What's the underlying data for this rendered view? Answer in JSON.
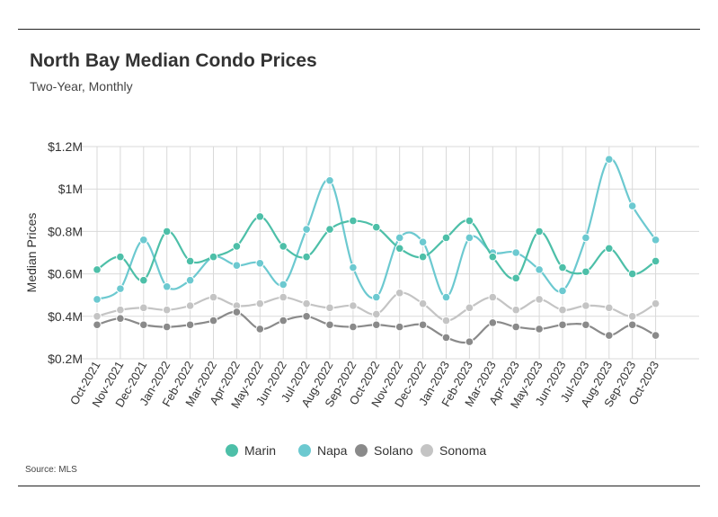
{
  "title": "North Bay Median Condo Prices",
  "subtitle": "Two-Year, Monthly",
  "source": "Source: MLS",
  "chart_data": {
    "type": "line",
    "title": "North Bay Median Condo Prices",
    "subtitle": "Two-Year, Monthly",
    "xlabel": "",
    "ylabel": "Median Prices",
    "ylim": [
      0.2,
      1.2
    ],
    "yticks": [
      {
        "value": 0.2,
        "label": "$0.2M"
      },
      {
        "value": 0.4,
        "label": "$0.4M"
      },
      {
        "value": 0.6,
        "label": "$0.6M"
      },
      {
        "value": 0.8,
        "label": "$0.8M"
      },
      {
        "value": 1.0,
        "label": "$1M"
      },
      {
        "value": 1.2,
        "label": "$1.2M"
      }
    ],
    "grid": true,
    "legend_position": "bottom-center",
    "categories": [
      "Oct-2021",
      "Nov-2021",
      "Dec-2021",
      "Jan-2022",
      "Feb-2022",
      "Mar-2022",
      "Apr-2022",
      "May-2022",
      "Jun-2022",
      "Jul-2022",
      "Aug-2022",
      "Sep-2022",
      "Oct-2022",
      "Nov-2022",
      "Dec-2022",
      "Jan-2023",
      "Feb-2023",
      "Mar-2023",
      "Apr-2023",
      "May-2023",
      "Jun-2023",
      "Jul-2023",
      "Aug-2023",
      "Sep-2023",
      "Oct-2023"
    ],
    "series": [
      {
        "name": "Marin",
        "color": "#4dbfa8",
        "values": [
          0.62,
          0.68,
          0.57,
          0.8,
          0.66,
          0.68,
          0.73,
          0.87,
          0.73,
          0.68,
          0.81,
          0.85,
          0.82,
          0.72,
          0.68,
          0.77,
          0.85,
          0.68,
          0.58,
          0.8,
          0.63,
          0.61,
          0.72,
          0.6,
          0.66
        ]
      },
      {
        "name": "Napa",
        "color": "#6cc9d0",
        "values": [
          0.48,
          0.53,
          0.76,
          0.54,
          0.57,
          0.68,
          0.64,
          0.65,
          0.55,
          0.81,
          1.04,
          0.63,
          0.49,
          0.77,
          0.75,
          0.49,
          0.77,
          0.7,
          0.7,
          0.62,
          0.52,
          0.77,
          1.14,
          0.92,
          0.76
        ]
      },
      {
        "name": "Solano",
        "color": "#8a8a8a",
        "values": [
          0.36,
          0.39,
          0.36,
          0.35,
          0.36,
          0.38,
          0.42,
          0.34,
          0.38,
          0.4,
          0.36,
          0.35,
          0.36,
          0.35,
          0.36,
          0.3,
          0.28,
          0.37,
          0.35,
          0.34,
          0.36,
          0.36,
          0.31,
          0.36,
          0.31
        ]
      },
      {
        "name": "Sonoma",
        "color": "#c4c4c4",
        "values": [
          0.4,
          0.43,
          0.44,
          0.43,
          0.45,
          0.49,
          0.45,
          0.46,
          0.49,
          0.46,
          0.44,
          0.45,
          0.41,
          0.51,
          0.46,
          0.38,
          0.44,
          0.49,
          0.43,
          0.48,
          0.43,
          0.45,
          0.44,
          0.4,
          0.46
        ]
      }
    ]
  }
}
